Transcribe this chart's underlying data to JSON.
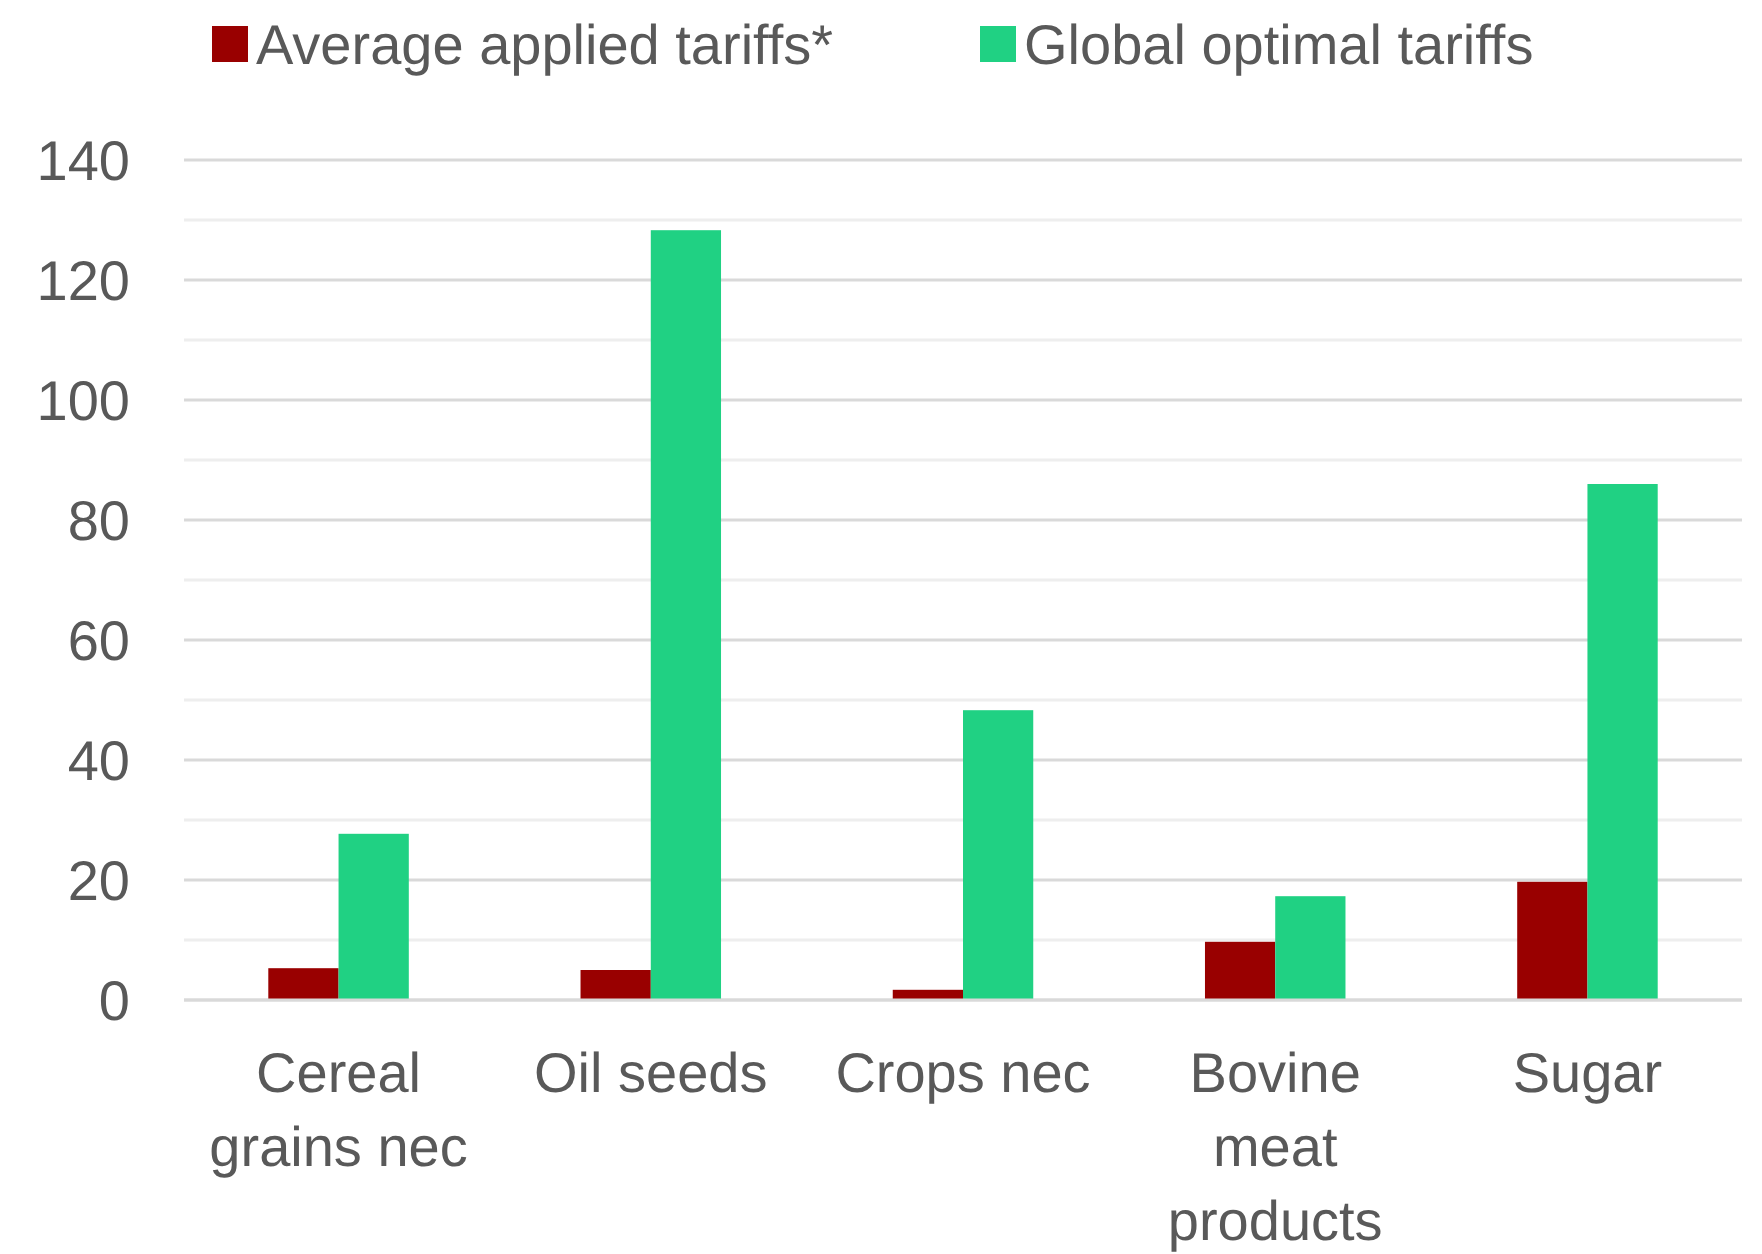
{
  "chart_data": {
    "type": "bar",
    "categories": [
      "Cereal grains nec",
      "Oil seeds",
      "Crops nec",
      "Bovine meat products",
      "Sugar"
    ],
    "series": [
      {
        "name": "Average applied tariffs*",
        "color": "#990000",
        "values": [
          5.3,
          5,
          1.7,
          9.7,
          19.7
        ]
      },
      {
        "name": "Global optimal tariffs",
        "color": "#20d183",
        "values": [
          27.7,
          128.3,
          48.3,
          17.3,
          86
        ]
      }
    ],
    "ylim": [
      0,
      140
    ],
    "yticks": [
      0,
      {
        "value": 10,
        "label": null
      },
      20,
      {
        "value": 30,
        "label": null
      },
      40,
      {
        "value": 50,
        "label": null
      },
      60,
      {
        "value": 70,
        "label": null
      },
      80,
      {
        "value": 90,
        "label": null
      },
      100,
      {
        "value": 110,
        "label": null
      },
      120,
      {
        "value": 130,
        "label": null
      },
      140
    ],
    "grid": "y",
    "legend": "top"
  }
}
